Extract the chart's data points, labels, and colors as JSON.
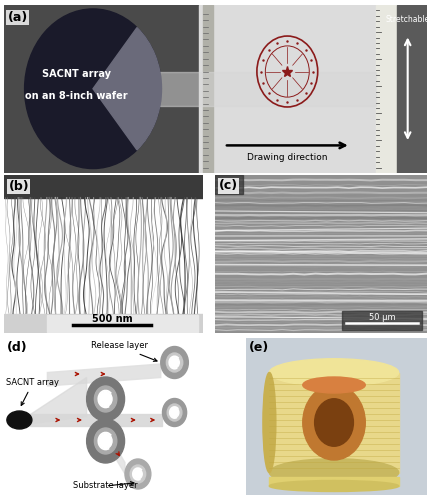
{
  "figure_width": 4.31,
  "figure_height": 5.0,
  "dpi": 100,
  "panel_labels": [
    "(a)",
    "(b)",
    "(c)",
    "(d)",
    "(e)"
  ],
  "panel_a_text1": "SACNT array",
  "panel_a_text2": "on an 8-inch wafer",
  "panel_a_drawing_direction": "Drawing direction",
  "panel_a_stretchable": "Stretchable",
  "panel_b_scale": "500 nm",
  "panel_c_scale": "50 μm",
  "panel_d_release": "Release layer",
  "panel_d_sacnt": "SACNT array",
  "panel_d_substrate": "Substrate layer",
  "bg_color": "#ffffff",
  "panel_a_left_bg": "#5a5a5a",
  "panel_a_right_bg": "#dcdcdc",
  "panel_a_ruler_bg": "#7a7878",
  "panel_a_wafer_dark": "#1a1a2a",
  "panel_a_wafer_grey": "#6a6a7a",
  "panel_a_film_color": "#c8c8c8",
  "panel_b_top": "#3a3a3a",
  "panel_b_mid": "#7a7a7a",
  "panel_b_bottom": "#c8c8c8",
  "panel_c_bg": "#999999",
  "panel_d_bg": "#f8f8f8",
  "panel_e_bg": "#c0c8d0",
  "seal_color": "#8B1a1a",
  "roll_dark": "#7a7a7a",
  "roll_mid": "#aaaaaa",
  "roll_light": "#cccccc",
  "reel_outer": "#e8d88a",
  "reel_inner": "#c07830",
  "reel_hole": "#7a4010",
  "reel_bg": "#c8d0d8"
}
